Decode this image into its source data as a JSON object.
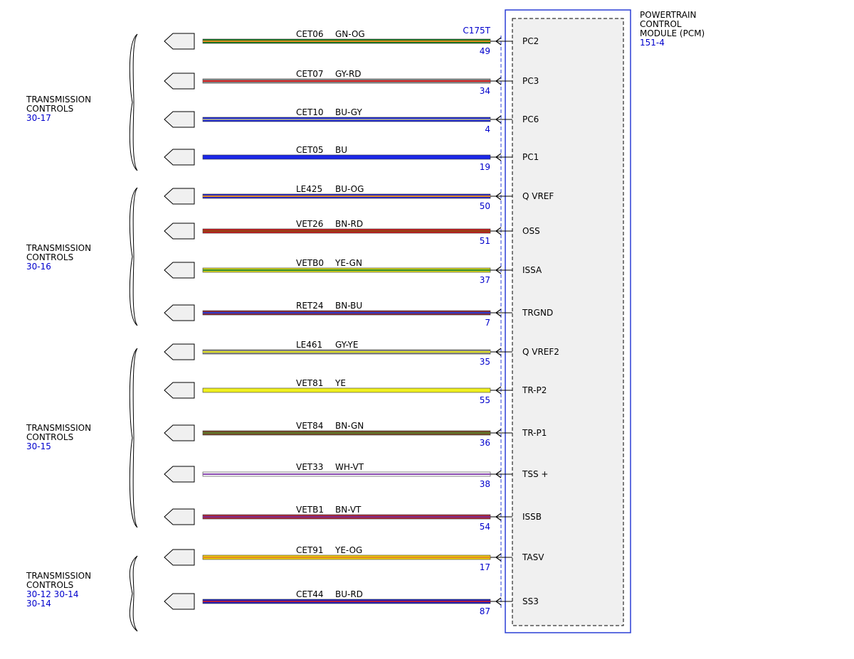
{
  "module": {
    "title_lines": [
      "POWERTRAIN",
      "CONTROL",
      "MODULE (PCM)"
    ],
    "ref": "151-4",
    "connector": "C175T",
    "colors": {
      "border": "#2a3fd6",
      "fill": "#f0f0f0"
    }
  },
  "groups": [
    {
      "lines": [
        "TRANSMISSION",
        "CONTROLS"
      ],
      "refs": [
        "30-17"
      ]
    },
    {
      "lines": [
        "TRANSMISSION",
        "CONTROLS"
      ],
      "refs": [
        "30-16"
      ]
    },
    {
      "lines": [
        "TRANSMISSION",
        "CONTROLS"
      ],
      "refs": [
        "30-15"
      ]
    },
    {
      "lines": [
        "TRANSMISSION",
        "CONTROLS"
      ],
      "refs": [
        "30-12  30-14",
        "30-14"
      ]
    }
  ],
  "wires": [
    {
      "circuit": "CET06",
      "color_code": "GN-OG",
      "pin": "49",
      "signal": "PC2",
      "base": "#1e7a1e",
      "stripe": "#e08a20"
    },
    {
      "circuit": "CET07",
      "color_code": "GY-RD",
      "pin": "34",
      "signal": "PC3",
      "base": "#8c8c8c",
      "stripe": "#d21e1e"
    },
    {
      "circuit": "CET10",
      "color_code": "BU-GY",
      "pin": "4",
      "signal": "PC6",
      "base": "#1c28d8",
      "stripe": "#9a9a9a"
    },
    {
      "circuit": "CET05",
      "color_code": "BU",
      "pin": "19",
      "signal": "PC1",
      "base": "#1c28e8",
      "stripe": ""
    },
    {
      "circuit": "LE425",
      "color_code": "BU-OG",
      "pin": "50",
      "signal": "Q VREF",
      "base": "#2a2ac8",
      "stripe": "#e08a20"
    },
    {
      "circuit": "VET26",
      "color_code": "BN-RD",
      "pin": "51",
      "signal": "OSS",
      "base": "#c81e1e",
      "stripe": "#8b4513"
    },
    {
      "circuit": "VETB0",
      "color_code": "YE-GN",
      "pin": "37",
      "signal": "ISSA",
      "base": "#d8d820",
      "stripe": "#2e8b2e"
    },
    {
      "circuit": "RET24",
      "color_code": "BN-BU",
      "pin": "7",
      "signal": "TRGND",
      "base": "#8b2a3a",
      "stripe": "#2a3acc"
    },
    {
      "circuit": "LE461",
      "color_code": "GY-YE",
      "pin": "35",
      "signal": "Q VREF2",
      "base": "#8a8a8a",
      "stripe": "#e0e020"
    },
    {
      "circuit": "VET81",
      "color_code": "YE",
      "pin": "55",
      "signal": "TR-P2",
      "base": "#f0f020",
      "stripe": ""
    },
    {
      "circuit": "VET84",
      "color_code": "BN-GN",
      "pin": "36",
      "signal": "TR-P1",
      "base": "#7a4a2a",
      "stripe": "#5a7a2a"
    },
    {
      "circuit": "VET33",
      "color_code": "WH-VT",
      "pin": "38",
      "signal": "TSS +",
      "base": "#ffffff",
      "stripe": "#8a4ab0"
    },
    {
      "circuit": "VETB1",
      "color_code": "BN-VT",
      "pin": "54",
      "signal": "ISSB",
      "base": "#b02a3a",
      "stripe": "#7a2a8a"
    },
    {
      "circuit": "CET91",
      "color_code": "YE-OG",
      "pin": "17",
      "signal": "TASV",
      "base": "#f0d010",
      "stripe": "#e08a20"
    },
    {
      "circuit": "CET44",
      "color_code": "BU-RD",
      "pin": "87",
      "signal": "SS3",
      "base": "#2020c0",
      "stripe": "#b01e3a"
    }
  ]
}
